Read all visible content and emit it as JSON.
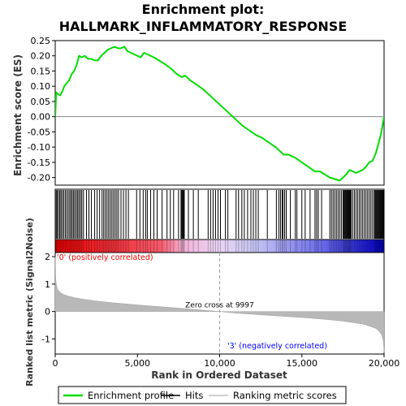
{
  "chart_data": {
    "type": "line",
    "title_line1": "Enrichment plot:",
    "title_line2": "HALLMARK_INFLAMMATORY_RESPONSE",
    "es_panel": {
      "ylabel": "Enrichment score (ES)",
      "ylim": [
        -0.225,
        0.25
      ],
      "yticks": [
        0.25,
        0.2,
        0.15,
        0.1,
        0.05,
        0.0,
        -0.05,
        -0.1,
        -0.15,
        -0.2
      ],
      "ytick_labels": [
        "0.25",
        "0.20",
        "0.15",
        "0.10",
        "0.05",
        "0.00",
        "-0.05",
        "-0.10",
        "-0.15",
        "-0.20"
      ],
      "series": [
        {
          "name": "Enrichment profile",
          "color": "#00dd00",
          "x": [
            0,
            60,
            150,
            300,
            450,
            550,
            700,
            850,
            1000,
            1150,
            1300,
            1450,
            1600,
            1800,
            2000,
            2200,
            2400,
            2600,
            2800,
            3000,
            3200,
            3400,
            3600,
            3800,
            4000,
            4200,
            4400,
            4600,
            4800,
            5000,
            5200,
            5400,
            5600,
            5800,
            6000,
            6300,
            6600,
            7000,
            7400,
            7700,
            7900,
            8200,
            8600,
            9000,
            9400,
            9800,
            10200,
            10600,
            11000,
            11400,
            11800,
            12200,
            12600,
            13000,
            13400,
            13700,
            13900,
            14200,
            14600,
            15000,
            15400,
            15800,
            16100,
            16400,
            16700,
            17000,
            17300,
            17500,
            17700,
            17900,
            18100,
            18300,
            18500,
            18700,
            18900,
            19100,
            19300,
            19500,
            19600,
            19700,
            19800,
            19900,
            20000
          ],
          "y": [
            0.0,
            0.08,
            0.075,
            0.07,
            0.085,
            0.1,
            0.11,
            0.12,
            0.14,
            0.15,
            0.17,
            0.2,
            0.195,
            0.2,
            0.19,
            0.19,
            0.185,
            0.185,
            0.2,
            0.21,
            0.22,
            0.225,
            0.23,
            0.225,
            0.225,
            0.23,
            0.215,
            0.21,
            0.205,
            0.2,
            0.195,
            0.21,
            0.205,
            0.2,
            0.195,
            0.185,
            0.175,
            0.16,
            0.14,
            0.13,
            0.135,
            0.12,
            0.105,
            0.09,
            0.07,
            0.05,
            0.03,
            0.01,
            -0.01,
            -0.03,
            -0.045,
            -0.06,
            -0.07,
            -0.085,
            -0.1,
            -0.115,
            -0.125,
            -0.125,
            -0.135,
            -0.15,
            -0.165,
            -0.18,
            -0.18,
            -0.19,
            -0.2,
            -0.205,
            -0.21,
            -0.2,
            -0.19,
            -0.175,
            -0.18,
            -0.185,
            -0.18,
            -0.175,
            -0.165,
            -0.15,
            -0.145,
            -0.12,
            -0.1,
            -0.08,
            -0.06,
            -0.03,
            0.0
          ]
        }
      ]
    },
    "hits_panel": {
      "hit_ranks": [
        60,
        120,
        200,
        280,
        350,
        430,
        520,
        610,
        700,
        790,
        880,
        960,
        1040,
        1120,
        1200,
        1290,
        1370,
        1450,
        1540,
        1620,
        1720,
        1900,
        2050,
        2200,
        2400,
        2550,
        2700,
        2850,
        2950,
        3050,
        3150,
        3250,
        3350,
        3450,
        3550,
        3650,
        3750,
        3850,
        4000,
        4150,
        4300,
        4450,
        4950,
        5150,
        5350,
        5500,
        5600,
        5800,
        6000,
        6200,
        6500,
        6800,
        7000,
        7200,
        7500,
        7650,
        7700,
        7750,
        7800,
        7850,
        8100,
        8400,
        8700,
        9300,
        9450,
        9600,
        9750,
        9900,
        10050,
        10350,
        10500,
        11000,
        11150,
        11350,
        11500,
        11700,
        11900,
        12050,
        12200,
        12350,
        12900,
        13450,
        13600,
        13700,
        13800,
        13850,
        13950,
        14050,
        14300,
        14600,
        14700,
        15000,
        15200,
        15500,
        15800,
        15900,
        16000,
        16200,
        16700,
        16800,
        16900,
        17000,
        17100,
        17200,
        17300,
        17400,
        17500,
        17550,
        17600,
        17650,
        17700,
        17750,
        17800,
        17850,
        17900,
        17950,
        18000,
        18100,
        18200,
        18300,
        18400,
        18500,
        18600,
        18700,
        18800,
        18900,
        19000,
        19100,
        19200,
        19300,
        19400,
        19450,
        19500,
        19550,
        19600,
        19650,
        19700,
        19750,
        19800,
        19850,
        19900,
        19950
      ]
    },
    "metric_panel": {
      "ylabel": "Ranked list metric (Signal2Noise)",
      "xlabel": "Rank in Ordered Dataset",
      "ylim": [
        -1.55,
        2.15
      ],
      "yticks": [
        2,
        1,
        0,
        -1
      ],
      "ytick_labels": [
        "2",
        "1",
        "0",
        "-1"
      ],
      "x": [
        0,
        30,
        80,
        150,
        300,
        500,
        800,
        1200,
        1800,
        2500,
        3500,
        5000,
        6500,
        8000,
        9000,
        9997,
        11000,
        12500,
        14000,
        15500,
        16500,
        17500,
        18200,
        18800,
        19200,
        19500,
        19700,
        19850,
        19950,
        19990,
        20000
      ],
      "y": [
        2.0,
        1.2,
        0.95,
        0.8,
        0.7,
        0.62,
        0.56,
        0.5,
        0.44,
        0.38,
        0.32,
        0.24,
        0.17,
        0.1,
        0.05,
        0.0,
        -0.06,
        -0.12,
        -0.18,
        -0.24,
        -0.29,
        -0.35,
        -0.41,
        -0.47,
        -0.55,
        -0.62,
        -0.72,
        -0.85,
        -1.05,
        -1.35,
        -1.5
      ],
      "zero_cross_label": "Zero cross at 9997",
      "zero_cross_rank": 9997,
      "pos_label": "'0' (positively correlated)",
      "neg_label": "'3' (negatively correlated)",
      "pos_label_color": "#ff0000",
      "neg_label_color": "#0000ff"
    },
    "xlim": [
      0,
      20000
    ],
    "xticks": [
      0,
      5000,
      10000,
      15000,
      20000
    ],
    "xtick_labels": [
      "0",
      "5,000",
      "10,000",
      "15,000",
      "20,000"
    ],
    "legend": {
      "placement": "bottom",
      "items": [
        {
          "label": "Enrichment profile",
          "color": "#00dd00"
        },
        {
          "label": "Hits",
          "color": "#000000"
        },
        {
          "label": "Ranking metric scores",
          "color": "#c0c0c0"
        }
      ]
    }
  }
}
